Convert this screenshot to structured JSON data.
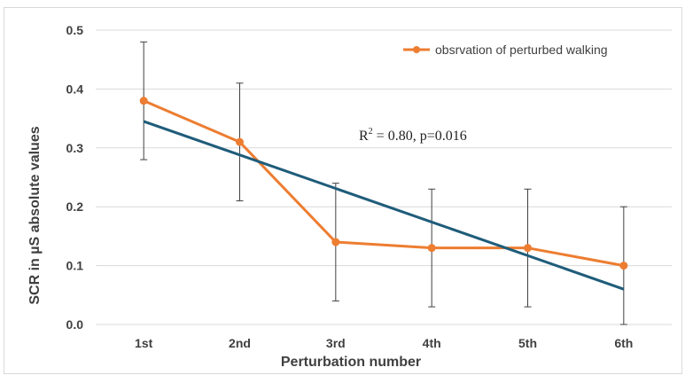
{
  "chart_data": {
    "type": "line",
    "title": "",
    "xlabel": "Perturbation number",
    "ylabel": "SCR in µS absolute values",
    "categories": [
      "1st",
      "2nd",
      "3rd",
      "4th",
      "5th",
      "6th"
    ],
    "ylim": [
      0,
      0.5
    ],
    "yticks": [
      "0.0",
      "0.1",
      "0.2",
      "0.3",
      "0.4",
      "0.5"
    ],
    "ytick_values": [
      0,
      0.1,
      0.2,
      0.3,
      0.4,
      0.5
    ],
    "grid": true,
    "legend_position": "top-right",
    "series": [
      {
        "name": "obsrvation of perturbed walking",
        "color": "#ed7d31",
        "values": [
          0.38,
          0.31,
          0.14,
          0.13,
          0.13,
          0.1
        ],
        "error_low": [
          0.28,
          0.21,
          0.04,
          0.03,
          0.03,
          0.0
        ],
        "error_high": [
          0.48,
          0.41,
          0.24,
          0.23,
          0.23,
          0.2
        ]
      }
    ],
    "trendline": {
      "color": "#1f5c7a",
      "start": 0.345,
      "end": 0.06
    },
    "annotation": {
      "base": "R",
      "sup": "2",
      "rest": " = 0.80, p=0.016"
    }
  }
}
